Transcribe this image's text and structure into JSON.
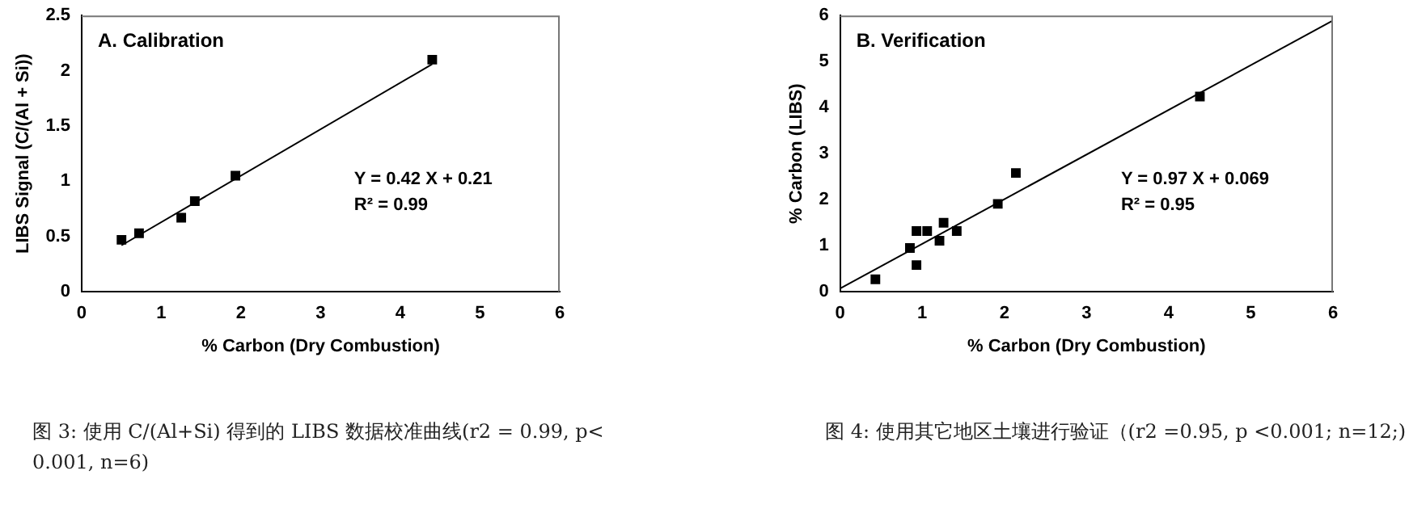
{
  "chart_data": [
    {
      "type": "scatter",
      "title": "A. Calibration",
      "xlabel": "% Carbon (Dry Combustion)",
      "ylabel": "LIBS Signal (C/(Al + Si))",
      "xlim": [
        0,
        6
      ],
      "xticks": [
        0,
        1,
        2,
        3,
        4,
        5,
        6
      ],
      "ylim": [
        0,
        2.5
      ],
      "yticks": [
        0,
        0.5,
        1,
        1.5,
        2,
        2.5
      ],
      "grid": false,
      "legend": false,
      "series": [
        {
          "type": "scatter",
          "marker": "square",
          "color": "#000000",
          "x": [
            0.5,
            0.72,
            1.25,
            1.42,
            1.93,
            4.4
          ],
          "values": [
            0.47,
            0.53,
            0.67,
            0.82,
            1.05,
            2.1
          ]
        },
        {
          "type": "line",
          "marker": "none",
          "color": "#000000",
          "x": [
            0.5,
            4.4
          ],
          "values": [
            0.42,
            2.06
          ]
        }
      ],
      "annotations": [
        "Y = 0.42 X + 0.21",
        "R² = 0.99",
        "图 3: 使用 C/(Al+Si) 得到的 LIBS 数据校准曲线(r2 = 0.99, p< 0.001, n=6)"
      ]
    },
    {
      "type": "scatter",
      "title": "B. Verification",
      "xlabel": "% Carbon (Dry Combustion)",
      "ylabel": "% Carbon (LIBS)",
      "xlim": [
        0,
        6
      ],
      "xticks": [
        0,
        1,
        2,
        3,
        4,
        5,
        6
      ],
      "ylim": [
        0,
        6
      ],
      "yticks": [
        0,
        1,
        2,
        3,
        4,
        5,
        6
      ],
      "grid": false,
      "legend": false,
      "series": [
        {
          "type": "scatter",
          "marker": "square",
          "color": "#000000",
          "x": [
            0.43,
            0.85,
            0.93,
            0.93,
            1.06,
            1.21,
            1.26,
            1.42,
            1.92,
            2.14,
            4.38
          ],
          "values": [
            0.27,
            0.95,
            1.32,
            0.58,
            1.32,
            1.11,
            1.5,
            1.32,
            1.91,
            2.58,
            4.24
          ]
        },
        {
          "type": "line",
          "marker": "none",
          "color": "#000000",
          "x": [
            0,
            6
          ],
          "values": [
            0.07,
            5.89
          ]
        }
      ],
      "annotations": [
        "Y = 0.97 X + 0.069",
        "R² = 0.95",
        "图 4:  使用其它地区土壤进行验证（(r2 =0.95, p <0.001; n=12;)"
      ]
    }
  ]
}
